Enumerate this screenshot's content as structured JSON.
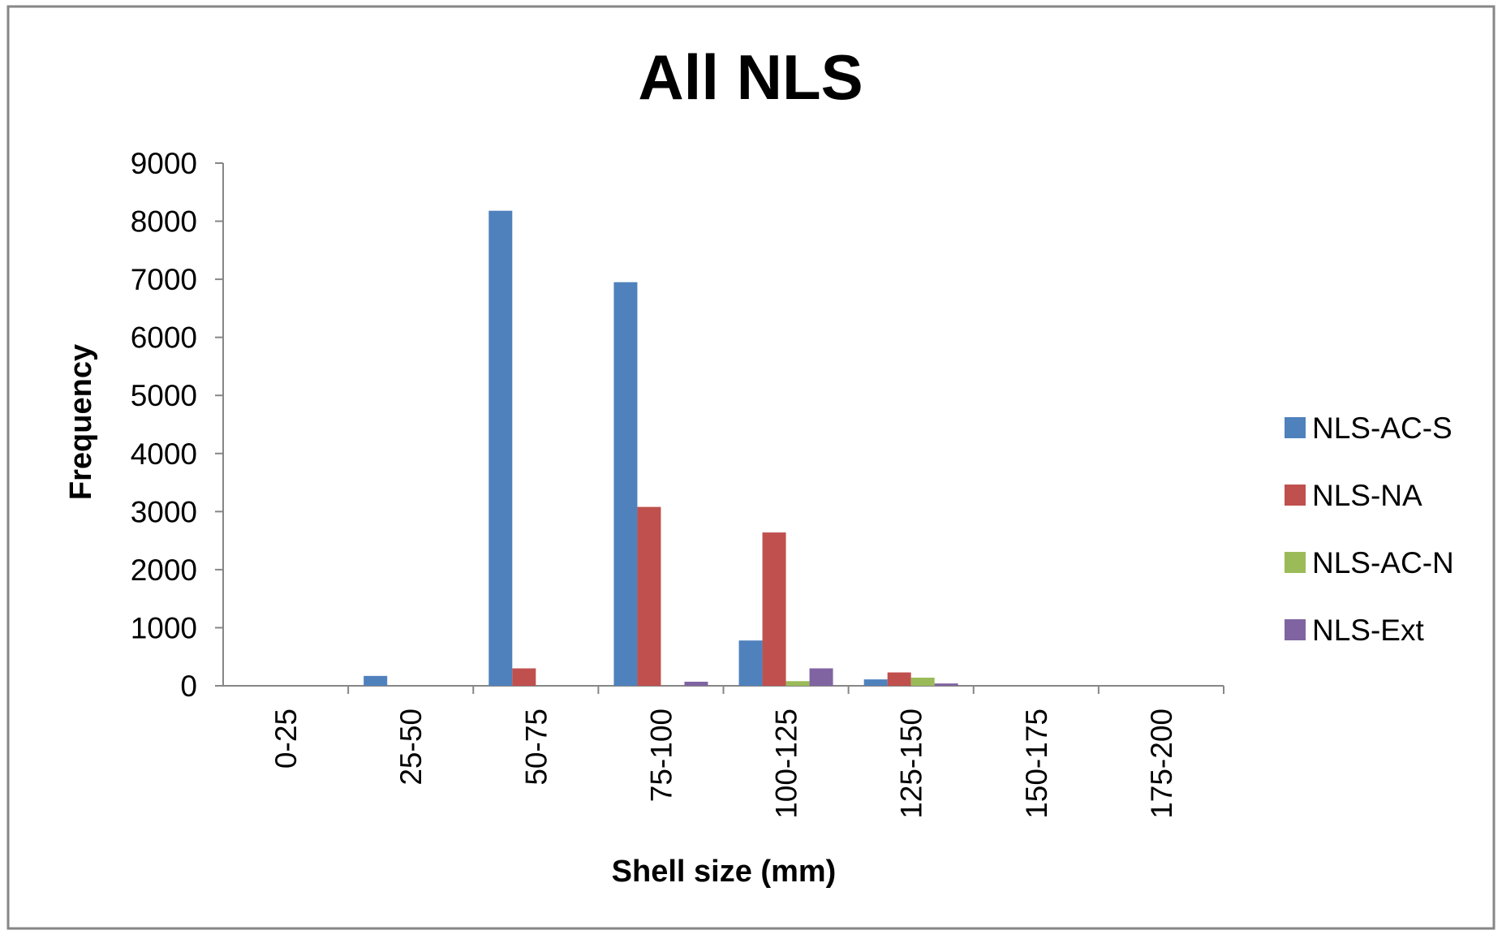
{
  "chart_data": {
    "type": "bar",
    "title": "All NLS",
    "xlabel": "Shell size (mm)",
    "ylabel": "Frequency",
    "ylim": [
      0,
      9000
    ],
    "yticks": [
      "0",
      "1000",
      "2000",
      "3000",
      "4000",
      "5000",
      "6000",
      "7000",
      "8000",
      "9000"
    ],
    "categories": [
      "0-25",
      "25-50",
      "50-75",
      "75-100",
      "100-125",
      "125-150",
      "150-175",
      "175-200"
    ],
    "series": [
      {
        "name": "NLS-AC-S",
        "color": "#4F81BD",
        "values": [
          0,
          170,
          8180,
          6950,
          780,
          110,
          0,
          0
        ]
      },
      {
        "name": "NLS-NA",
        "color": "#C0504D",
        "values": [
          0,
          0,
          300,
          3080,
          2640,
          230,
          0,
          0
        ]
      },
      {
        "name": "NLS-AC-N",
        "color": "#9BBB59",
        "values": [
          0,
          0,
          0,
          0,
          80,
          140,
          0,
          0
        ]
      },
      {
        "name": "NLS-Ext",
        "color": "#8064A2",
        "values": [
          0,
          0,
          0,
          70,
          300,
          40,
          0,
          0
        ]
      }
    ],
    "grid": false,
    "legend_position": "right",
    "border_color": "#868686"
  }
}
